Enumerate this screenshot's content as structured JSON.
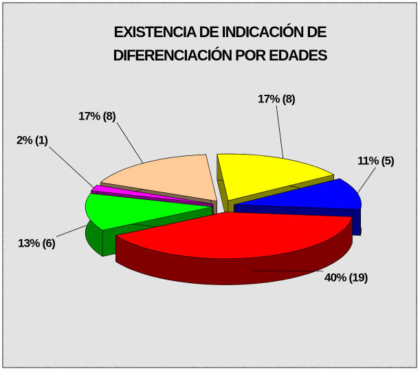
{
  "chart_data": {
    "type": "pie3d",
    "title": [
      "EXISTENCIA DE INDICACIÓN DE",
      "DIFERENCIACIÓN POR EDADES"
    ],
    "values": [
      17,
      11,
      40,
      13,
      2,
      17
    ],
    "value_labels": [
      "17% (8)",
      "11% (5)",
      "40% (19)",
      "13% (6)",
      "2% (1)",
      "17% (8)"
    ],
    "colors": [
      "#ffff00",
      "#0000ff",
      "#ff0000",
      "#00ff00",
      "#ff00ff",
      "#ffcc99"
    ],
    "exploded": true
  }
}
